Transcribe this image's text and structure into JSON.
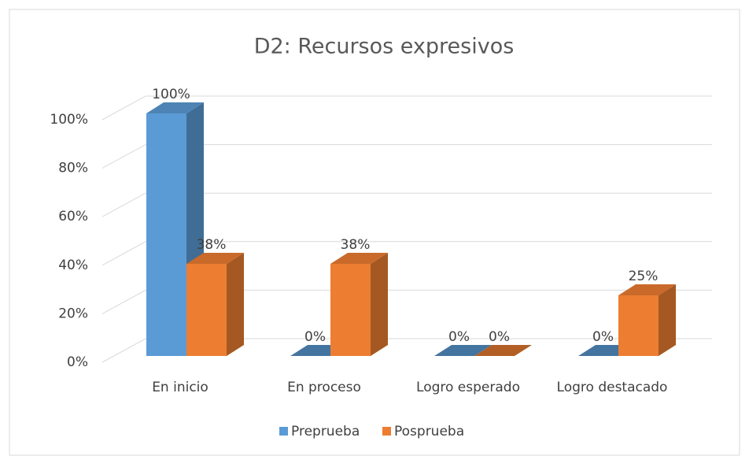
{
  "chart_data": {
    "type": "bar3d",
    "title": "D2: Recursos expresivos",
    "categories": [
      "En inicio",
      "En proceso",
      "Logro esperado",
      "Logro destacado"
    ],
    "series": [
      {
        "name": "Preprueba",
        "color": "#5b9bd5",
        "values": [
          100,
          0,
          0,
          0
        ],
        "value_labels": [
          "100%",
          "0%",
          "0%",
          "0%"
        ]
      },
      {
        "name": "Posprueba",
        "color": "#ed7d31",
        "values": [
          38,
          38,
          0,
          25
        ],
        "value_labels": [
          "38%",
          "38%",
          "0%",
          "25%"
        ]
      }
    ],
    "ylim": [
      0,
      100
    ],
    "yticks": [
      {
        "value": 0,
        "label": "0%"
      },
      {
        "value": 20,
        "label": "20%"
      },
      {
        "value": 40,
        "label": "40%"
      },
      {
        "value": 60,
        "label": "60%"
      },
      {
        "value": 80,
        "label": "80%"
      },
      {
        "value": 100,
        "label": "100%"
      }
    ],
    "grid": true,
    "legend": "bottom"
  }
}
